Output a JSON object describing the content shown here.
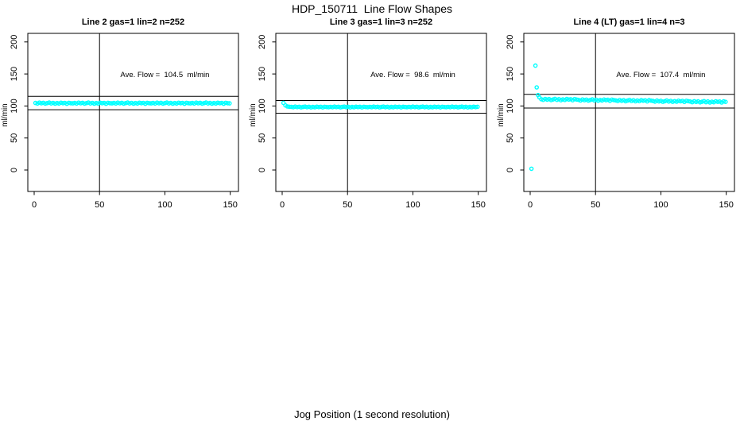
{
  "title": "HDP_150711  Line Flow Shapes",
  "xlabel": "Jog Position (1 second resolution)",
  "colors": {
    "points": "#00ffff",
    "axis": "#000000",
    "background": "#ffffff"
  },
  "chart_data": {
    "type": "scatter",
    "ylabel": "ml/min",
    "x_ticks": [
      0,
      50,
      100,
      150
    ],
    "y_ticks": [
      0,
      50,
      100,
      150,
      200
    ],
    "xlim": [
      0,
      155
    ],
    "ylim": [
      -35,
      215
    ],
    "grid": false,
    "marker": "open-circle",
    "panels": [
      {
        "title": "Line 2 gas=1 lin=2 n=252",
        "annotation": "Ave. Flow =  104.5  ml/min",
        "ave_flow": 104.5,
        "n": 252,
        "upper_line": 115.0,
        "lower_line": 94.1,
        "vline_x": 50,
        "x_start": 1,
        "x_step": 1.5,
        "extra_points": [],
        "y": [
          104.7,
          103.9,
          105.2,
          104.2,
          105.0,
          103.7,
          104.5,
          105.3,
          104.0,
          104.9,
          103.6,
          104.6,
          103.8,
          105.1,
          104.3,
          104.8,
          103.5,
          105.0,
          104.4,
          104.1,
          104.7,
          103.9,
          105.2,
          104.2,
          105.0,
          103.7,
          104.5,
          105.3,
          104.0,
          104.9,
          103.6,
          104.6,
          103.8,
          105.1,
          104.3,
          104.8,
          103.5,
          105.0,
          104.4,
          104.1,
          104.7,
          103.9,
          105.2,
          104.2,
          105.0,
          103.7,
          104.5,
          105.3,
          104.0,
          104.9,
          103.6,
          104.6,
          103.8,
          105.1,
          104.3,
          104.8,
          103.5,
          105.0,
          104.4,
          104.1,
          104.7,
          103.9,
          105.2,
          104.2,
          105.0,
          103.7,
          104.5,
          105.3,
          104.0,
          104.9,
          103.6,
          104.6,
          103.8,
          105.1,
          104.3,
          104.8,
          103.5,
          105.0,
          104.4,
          104.1,
          104.7,
          103.9,
          105.2,
          104.2,
          105.0,
          103.7,
          104.5,
          105.3,
          104.0,
          104.9,
          103.6,
          104.6,
          103.8,
          105.1,
          104.3,
          104.8,
          103.5,
          105.0,
          104.4,
          104.1
        ]
      },
      {
        "title": "Line 3 gas=1 lin=3 n=252",
        "annotation": "Ave. Flow =  98.6  ml/min",
        "ave_flow": 98.6,
        "n": 252,
        "upper_line": 108.5,
        "lower_line": 88.7,
        "vline_x": 50,
        "x_start": 1,
        "x_step": 1.5,
        "extra_points": [],
        "y": [
          104.8,
          100.9,
          99.3,
          98.7,
          98.6,
          98.1,
          99.0,
          98.3,
          98.8,
          97.9,
          98.5,
          99.0,
          98.1,
          98.8,
          97.8,
          98.5,
          98.0,
          98.9,
          98.3,
          98.7,
          97.8,
          98.8,
          98.4,
          98.2,
          98.6,
          98.1,
          99.0,
          98.3,
          98.8,
          97.9,
          98.5,
          99.0,
          98.1,
          98.8,
          97.8,
          98.5,
          98.0,
          98.9,
          98.3,
          98.7,
          97.8,
          98.8,
          98.4,
          98.2,
          98.6,
          98.1,
          99.0,
          98.3,
          98.8,
          97.9,
          98.5,
          99.0,
          98.1,
          98.8,
          97.8,
          98.5,
          98.0,
          98.9,
          98.3,
          98.7,
          97.8,
          98.8,
          98.4,
          98.2,
          98.6,
          98.1,
          99.0,
          98.3,
          98.8,
          97.9,
          98.5,
          99.0,
          98.1,
          98.8,
          97.8,
          98.5,
          98.0,
          98.9,
          98.3,
          98.7,
          97.8,
          98.8,
          98.4,
          98.2,
          98.6,
          98.1,
          99.0,
          98.3,
          98.8,
          97.9,
          98.5,
          99.0,
          98.1,
          98.8,
          97.8,
          98.5,
          98.0,
          98.9,
          98.3,
          98.7
        ]
      },
      {
        "title": "Line 4 (LT) gas=1 lin=4 n=3",
        "annotation": "Ave. Flow =  107.4  ml/min",
        "ave_flow": 107.4,
        "n": 3,
        "upper_line": 118.1,
        "lower_line": 96.7,
        "vline_x": 50,
        "x_start": 8.5,
        "x_step": 1.5,
        "extra_points": [
          [
            1,
            2
          ],
          [
            4,
            163
          ],
          [
            5,
            129
          ],
          [
            6,
            117
          ],
          [
            7,
            113.5
          ]
        ],
        "y": [
          110.5,
          109.5,
          111.1,
          109.9,
          110.8,
          109.3,
          110.2,
          111.2,
          109.6,
          110.7,
          109.1,
          110.3,
          109.4,
          110.9,
          110.0,
          110.6,
          109.0,
          110.8,
          110.1,
          109.6,
          108.6,
          110.2,
          109.0,
          109.9,
          108.4,
          109.3,
          110.3,
          108.7,
          109.8,
          108.2,
          109.4,
          108.5,
          110.0,
          109.1,
          109.7,
          108.1,
          109.9,
          109.2,
          108.7,
          107.7,
          109.3,
          108.1,
          109.0,
          107.5,
          108.4,
          109.4,
          107.8,
          108.9,
          107.3,
          108.5,
          107.6,
          109.1,
          108.2,
          108.8,
          107.2,
          109.0,
          108.3,
          107.8,
          106.8,
          108.4,
          107.2,
          108.1,
          106.6,
          107.5,
          108.5,
          106.9,
          108.0,
          106.4,
          107.6,
          106.7,
          108.2,
          107.3,
          107.9,
          106.3,
          108.1,
          107.4,
          106.9,
          105.9,
          107.5,
          106.3,
          107.2,
          105.7,
          106.6,
          107.6,
          106.0,
          107.1,
          105.5,
          106.7,
          105.8,
          107.3,
          106.4,
          107.0,
          105.4,
          107.2,
          106.5
        ]
      }
    ]
  }
}
